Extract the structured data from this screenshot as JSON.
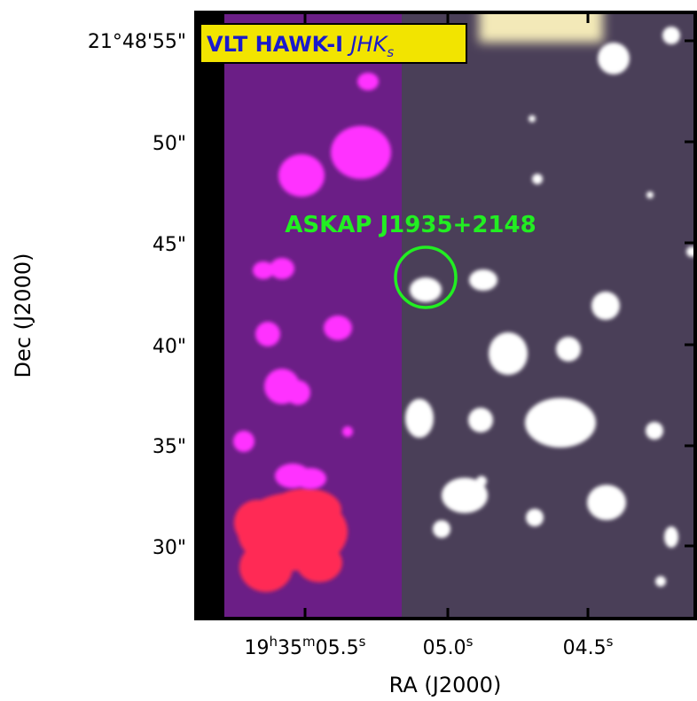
{
  "image": {
    "instrument_label": "VLT HAWK-I",
    "filters_label": "JHK",
    "filters_subscript": "s",
    "source_name": "ASKAP J1935+2148",
    "colors": {
      "badge_fill": "#f2e400",
      "badge_text": "#1a1acc",
      "source_marker": "#22ee22",
      "left_panel": "#6b1e86",
      "right_panel": "#4a3f58",
      "magenta_star": "#ff33ff",
      "red_blob": "#ff2a55",
      "white_star": "#ffffff",
      "frame": "#000000"
    }
  },
  "axes": {
    "x_title": "RA (J2000)",
    "y_title": "Dec (J2000)",
    "x_ticks": [
      {
        "h": "19",
        "hsup": "h",
        "m": "35",
        "msup": "m",
        "s": "05.5",
        "ssup": "s"
      },
      {
        "s": "05.0",
        "ssup": "s"
      },
      {
        "s": "04.5",
        "ssup": "s"
      }
    ],
    "y_ticks": [
      "21°48'55\"",
      "50\"",
      "45\"",
      "40\"",
      "35\"",
      "30\""
    ]
  }
}
